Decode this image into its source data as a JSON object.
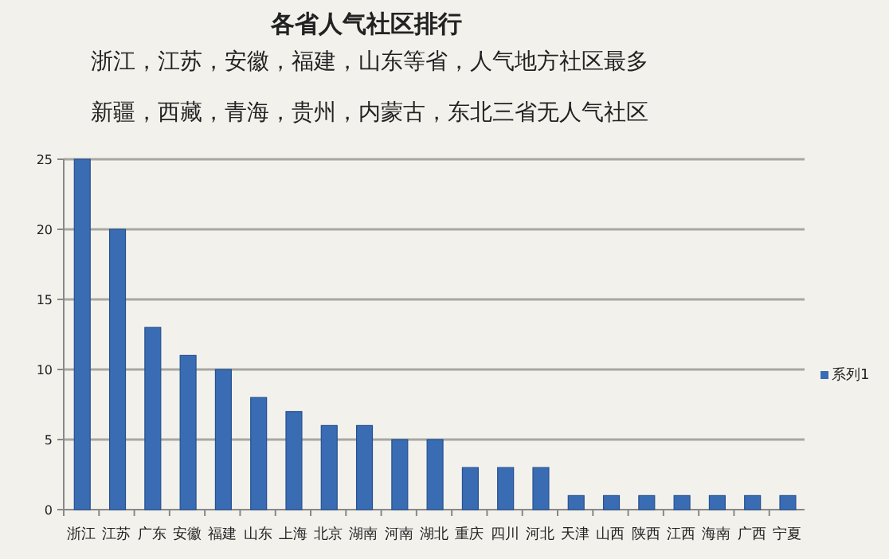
{
  "chart_data": {
    "type": "bar",
    "title": "各省人气社区排行",
    "subtitle": "浙江，江苏，安徽，福建，山东等省，人气地方社区最多",
    "annotations": [
      "新疆，西藏，青海，贵州，内蒙古，东北三省无人气社区"
    ],
    "categories": [
      "浙江",
      "江苏",
      "广东",
      "安徽",
      "福建",
      "山东",
      "上海",
      "北京",
      "湖南",
      "河南",
      "湖北",
      "重庆",
      "四川",
      "河北",
      "天津",
      "山西",
      "陕西",
      "江西",
      "海南",
      "广西",
      "宁夏"
    ],
    "series": [
      {
        "name": "系列1",
        "color": "#3a6cb4",
        "values": [
          25,
          20,
          13,
          11,
          10,
          8,
          7,
          6,
          6,
          5,
          5,
          3,
          3,
          3,
          1,
          1,
          1,
          1,
          1,
          1,
          1
        ]
      }
    ],
    "ylim": [
      0,
      25
    ],
    "yticks": [
      0,
      5,
      10,
      15,
      20,
      25
    ],
    "grid": "y",
    "legend": "right"
  }
}
